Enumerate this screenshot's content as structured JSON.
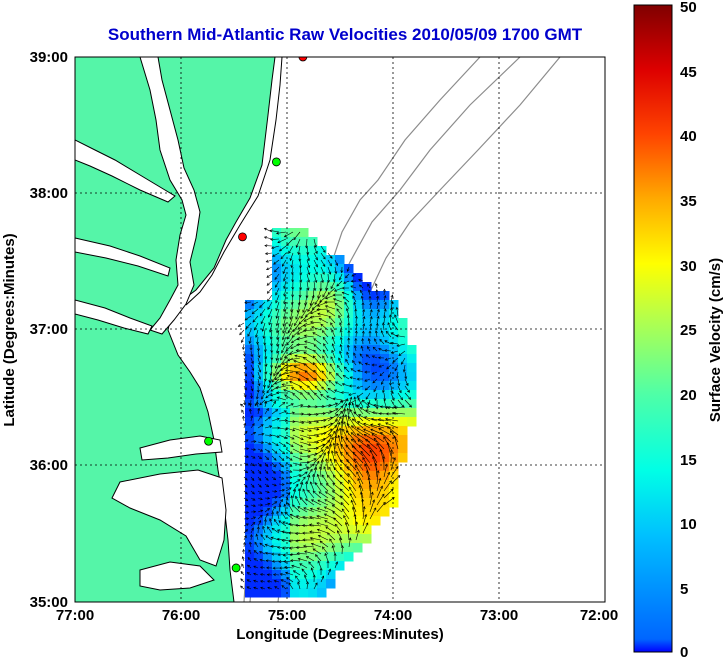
{
  "title": "Southern Mid-Atlantic Raw Velocities 2010/05/09 1700 GMT",
  "xlabel": "Longitude (Degrees:Minutes)",
  "ylabel": "Latitude (Degrees:Minutes)",
  "colorbar": {
    "label": "Surface Velocity (cm/s)",
    "ticks": [
      "0",
      "5",
      "10",
      "15",
      "20",
      "25",
      "30",
      "35",
      "40",
      "45",
      "50"
    ],
    "min": 0,
    "max": 50,
    "colormap": "jet"
  },
  "x_ticks": [
    "77:00",
    "76:00",
    "75:00",
    "74:00",
    "73:00",
    "72:00"
  ],
  "y_ticks": [
    "39:00",
    "38:00",
    "37:00",
    "36:00",
    "35:00"
  ],
  "map_extent": {
    "lon": [
      -77,
      -72
    ],
    "lat": [
      35,
      39
    ]
  },
  "colors": {
    "land": "#55f5a8",
    "coastline": "#000000",
    "bathymetry": "#8c8c8c",
    "title": "#0000cc",
    "grid": "#000000"
  },
  "stations": [
    {
      "lat": 39.0,
      "lon": -74.85,
      "color": "#ff0000"
    },
    {
      "lat": 38.23,
      "lon": -75.1,
      "color": "#00ff00"
    },
    {
      "lat": 37.68,
      "lon": -75.42,
      "color": "#ff0000"
    },
    {
      "lat": 36.18,
      "lon": -75.74,
      "color": "#00ff00"
    },
    {
      "lat": 35.25,
      "lon": -75.48,
      "color": "#00ff00"
    }
  ]
}
